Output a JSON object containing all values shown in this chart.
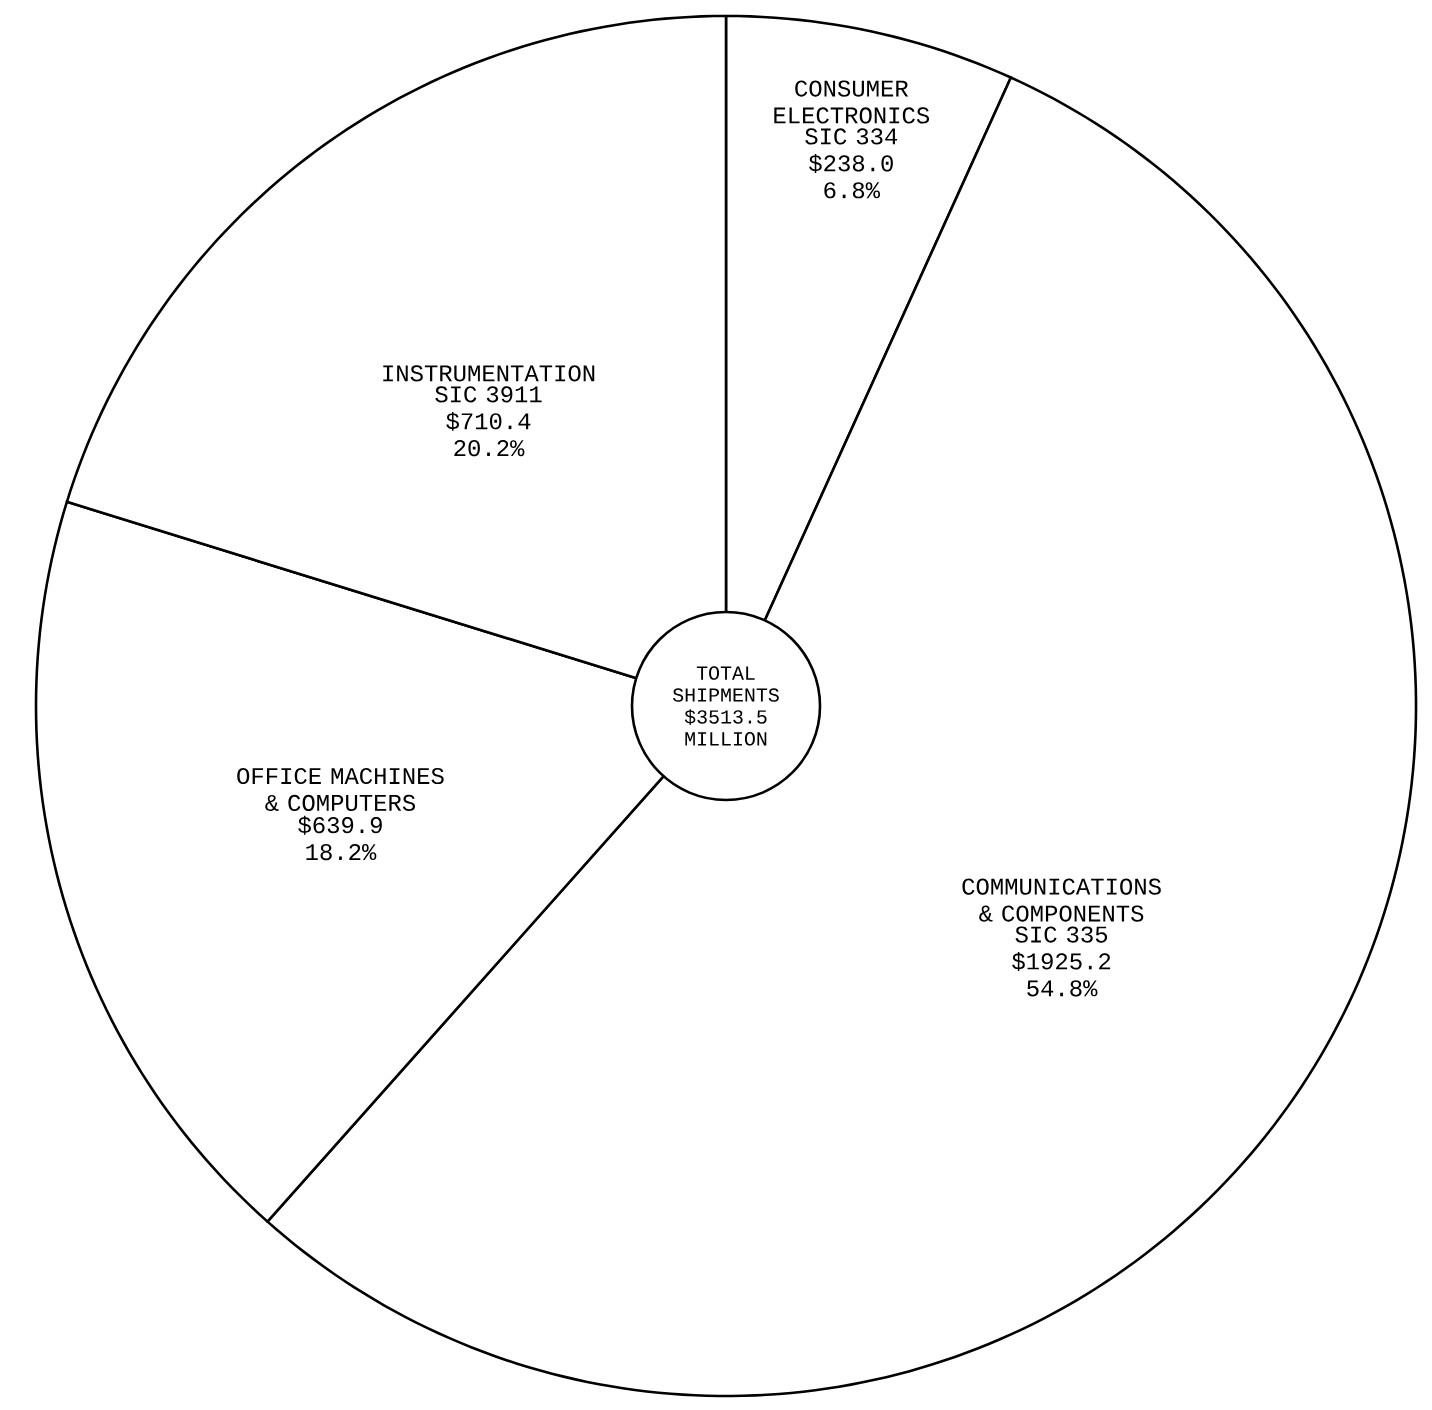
{
  "chart_data": {
    "type": "pie",
    "categories": [
      "CONSUMER ELECTRONICS",
      "COMMUNICATIONS & COMPONENTS",
      "OFFICE MACHINES & COMPUTERS",
      "INSTRUMENTATION"
    ],
    "values": [
      238.0,
      1925.2,
      639.9,
      710.4
    ],
    "value_labels": [
      "SIC 334 $238.0 6.8%",
      "SIC 335 $1925.2 54.8%",
      "$639.9 18.2%",
      "SIC 3911 $710.4 20.2%"
    ],
    "colors": [
      "#ffffff",
      "#ffffff",
      "#ffffff",
      "#ffffff"
    ],
    "annotations": [
      "TOTAL SHIPMENTS $3513.5 MILLION"
    ]
  }
}
